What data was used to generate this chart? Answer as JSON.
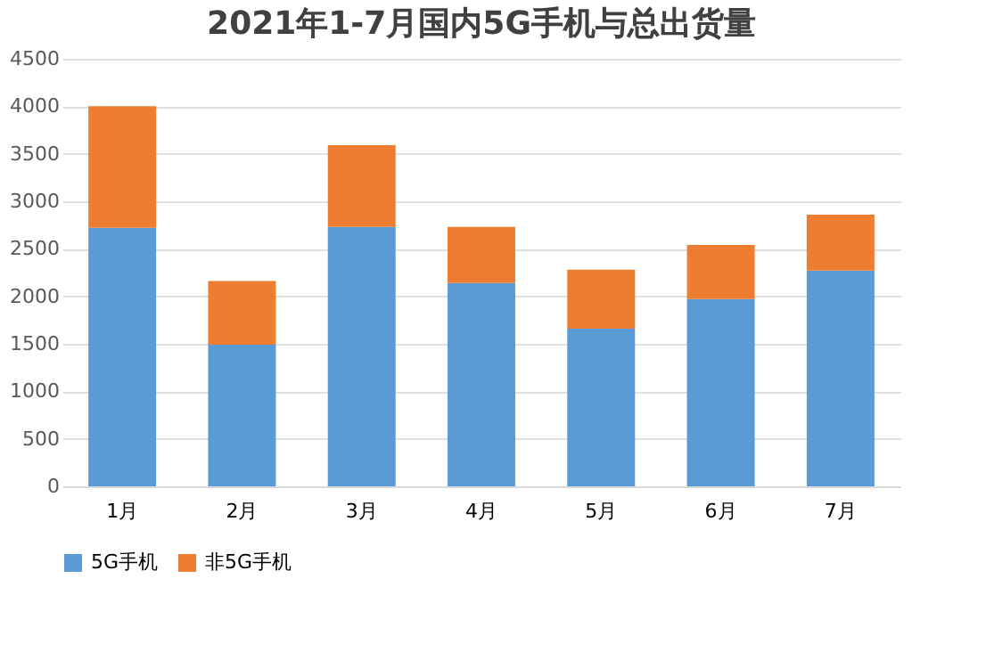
{
  "chart_data": {
    "type": "bar",
    "title": "2021年1-7月国内5G手机与总出货量",
    "stacked": true,
    "categories": [
      "1月",
      "2月",
      "3月",
      "4月",
      "5月",
      "6月",
      "7月"
    ],
    "series": [
      {
        "name": "5G手机",
        "color": "#5b9bd5",
        "values": [
          2720,
          1490,
          2730,
          2140,
          1660,
          1970,
          2270
        ]
      },
      {
        "name": "非5G手机",
        "color": "#ed7d31",
        "values": [
          1280,
          670,
          860,
          590,
          620,
          570,
          590
        ]
      }
    ],
    "ylim": [
      0,
      4500
    ],
    "yticks": [
      0,
      500,
      1000,
      1500,
      2000,
      2500,
      3000,
      3500,
      4000,
      4500
    ],
    "grid": "y",
    "legend": "bottom"
  }
}
